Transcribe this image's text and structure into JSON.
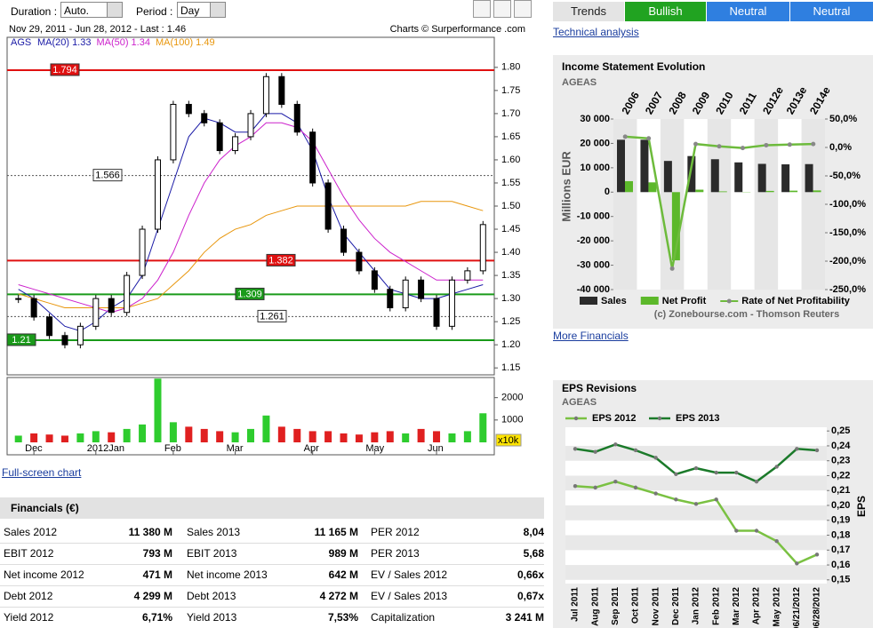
{
  "toolbar": {
    "duration_label": "Duration :",
    "duration_value": "Auto.",
    "period_label": "Period :",
    "period_value": "Day"
  },
  "links": {
    "full_screen": "Full-screen chart",
    "technical_analysis": "Technical analysis",
    "more_financials": "More Financials"
  },
  "trends": {
    "label": "Trends",
    "values": [
      "Bullish",
      "Neutral",
      "Neutral"
    ]
  },
  "chart_data": [
    {
      "type": "candlestick",
      "title": "Nov 29, 2011 - Jun 28, 2012 - Last : 1.46",
      "credit": "Charts © Surperformance .com",
      "symbol": "AGS",
      "categories": [
        null,
        "Dec",
        null,
        null,
        null,
        "2012Jan",
        null,
        null,
        null,
        null,
        "Feb",
        null,
        null,
        null,
        "Mar",
        null,
        null,
        null,
        null,
        "Apr",
        null,
        null,
        null,
        "May",
        null,
        null,
        null,
        "Jun",
        null,
        null,
        null
      ],
      "close": [
        1.3,
        1.26,
        1.22,
        1.2,
        1.24,
        1.3,
        1.27,
        1.35,
        1.45,
        1.6,
        1.72,
        1.7,
        1.68,
        1.62,
        1.65,
        1.7,
        1.78,
        1.72,
        1.66,
        1.55,
        1.45,
        1.4,
        1.36,
        1.32,
        1.28,
        1.34,
        1.3,
        1.24,
        1.34,
        1.36,
        1.46
      ],
      "series": [
        {
          "name": "MA(20)",
          "last": 1.33,
          "color": "#1a1aa6",
          "values": [
            1.32,
            1.3,
            1.27,
            1.24,
            1.23,
            1.25,
            1.28,
            1.3,
            1.35,
            1.45,
            1.55,
            1.65,
            1.69,
            1.68,
            1.66,
            1.66,
            1.7,
            1.7,
            1.68,
            1.62,
            1.52,
            1.44,
            1.4,
            1.36,
            1.32,
            1.31,
            1.3,
            1.3,
            1.31,
            1.32,
            1.33
          ]
        },
        {
          "name": "MA(50)",
          "last": 1.34,
          "color": "#cc22cc",
          "values": [
            1.33,
            1.32,
            1.31,
            1.3,
            1.29,
            1.28,
            1.27,
            1.28,
            1.3,
            1.34,
            1.4,
            1.48,
            1.55,
            1.6,
            1.63,
            1.65,
            1.68,
            1.68,
            1.67,
            1.64,
            1.58,
            1.52,
            1.47,
            1.43,
            1.4,
            1.38,
            1.36,
            1.34,
            1.34,
            1.34,
            1.34
          ]
        },
        {
          "name": "MA(100)",
          "last": 1.49,
          "color": "#e8960c",
          "values": [
            1.31,
            1.3,
            1.29,
            1.28,
            1.28,
            1.28,
            1.28,
            1.28,
            1.29,
            1.3,
            1.33,
            1.36,
            1.4,
            1.43,
            1.45,
            1.46,
            1.48,
            1.49,
            1.5,
            1.5,
            1.5,
            1.5,
            1.5,
            1.5,
            1.5,
            1.5,
            1.51,
            1.51,
            1.51,
            1.5,
            1.49
          ]
        }
      ],
      "levels": [
        {
          "value": 1.794,
          "color": "#e01010"
        },
        {
          "value": 1.566,
          "color": "#ffffff"
        },
        {
          "value": 1.382,
          "color": "#e01010"
        },
        {
          "value": 1.309,
          "color": "#1a9a1a"
        },
        {
          "value": 1.261,
          "color": "#ffffff"
        },
        {
          "value": 1.21,
          "color": "#1a9a1a"
        }
      ],
      "ylim": [
        1.135,
        1.865
      ],
      "yticks": [
        1.15,
        {
          "value": 1.2,
          "label": "1.20"
        },
        1.25,
        {
          "value": 1.3,
          "label": "1.30"
        },
        1.35,
        {
          "value": 1.4,
          "label": "1.40"
        },
        1.45,
        {
          "value": 1.5,
          "label": "1.50"
        },
        1.55,
        {
          "value": 1.6,
          "label": "1.60"
        },
        1.65,
        {
          "value": 1.7,
          "label": "1.70"
        },
        1.75,
        {
          "value": 1.8,
          "label": "1.80"
        }
      ],
      "volume": {
        "unit": "x10k",
        "values": [
          300,
          400,
          350,
          300,
          400,
          500,
          450,
          600,
          800,
          2850,
          900,
          700,
          600,
          500,
          450,
          600,
          1200,
          700,
          600,
          500,
          500,
          400,
          350,
          450,
          500,
          400,
          600,
          500,
          400,
          500,
          1300
        ],
        "ylim": [
          0,
          2900
        ],
        "yticks": [
          1000,
          2000
        ]
      }
    },
    {
      "type": "bar",
      "title": "Income Statement Evolution",
      "subtitle": "AGEAS",
      "ylabel": "Millions EUR",
      "credit": "(c) Zonebourse.com - Thomson Reuters",
      "categories": [
        "2006",
        "2007",
        "2008",
        "2009",
        "2010",
        "2011",
        "2012e",
        "2013e",
        "2014e"
      ],
      "series": [
        {
          "name": "Sales",
          "color": "#2b2b2b",
          "values": [
            21500,
            21500,
            12800,
            14800,
            13500,
            12200,
            11600,
            11400,
            11500
          ]
        },
        {
          "name": "Net Profit",
          "color": "#5cb82a",
          "values": [
            4500,
            4000,
            -28000,
            1000,
            300,
            -100,
            500,
            600,
            700
          ]
        },
        {
          "name": "Rate of Net Profitability",
          "color": "#6dbb3c",
          "axis": "y2",
          "values": [
            19,
            16,
            -213,
            6,
            2,
            -1,
            4,
            5,
            6
          ]
        }
      ],
      "ylim": [
        -40000,
        30000
      ],
      "yticks": [
        {
          "value": -40000,
          "label": "-40 000"
        },
        {
          "value": -30000,
          "label": "-30 000"
        },
        {
          "value": -20000,
          "label": "-20 000"
        },
        {
          "value": -10000,
          "label": "-10 000"
        },
        0,
        {
          "value": 10000,
          "label": "10 000"
        },
        {
          "value": 20000,
          "label": "20 000"
        },
        {
          "value": 30000,
          "label": "30 000"
        }
      ],
      "y2lim": [
        -250,
        50
      ],
      "y2ticks": [
        {
          "value": -250,
          "label": "-250,0%"
        },
        {
          "value": -200,
          "label": "-200,0%"
        },
        {
          "value": -150,
          "label": "-150,0%"
        },
        {
          "value": -100,
          "label": "-100,0%"
        },
        {
          "value": -50,
          "label": "-50,0%"
        },
        {
          "value": 0,
          "label": "0,0%"
        },
        {
          "value": 50,
          "label": "50,0%"
        }
      ]
    },
    {
      "type": "line",
      "title": "EPS Revisions",
      "subtitle": "AGEAS",
      "ylabel": "EPS",
      "categories": [
        "Jul 2011",
        "Aug 2011",
        "Sep 2011",
        "Oct 2011",
        "Nov 2011",
        "Dec 2011",
        "Jan 2012",
        "Feb 2012",
        "Mar 2012",
        "Apr 2012",
        "May 2012",
        "06/21/2012",
        "06/28/2012"
      ],
      "series": [
        {
          "name": "EPS 2012",
          "color": "#7ac142",
          "values": [
            0.213,
            0.212,
            0.216,
            0.212,
            0.208,
            0.204,
            0.201,
            0.204,
            0.183,
            0.183,
            0.176,
            0.161,
            0.167
          ]
        },
        {
          "name": "EPS 2013",
          "color": "#1b7a2a",
          "values": [
            0.238,
            0.236,
            0.241,
            0.237,
            0.232,
            0.221,
            0.225,
            0.222,
            0.222,
            0.216,
            0.226,
            0.238,
            0.237
          ]
        }
      ],
      "ylim": [
        0.1475,
        0.2525
      ],
      "yticks": [
        {
          "value": 0.15,
          "label": "0,15"
        },
        {
          "value": 0.16,
          "label": "0,16"
        },
        {
          "value": 0.17,
          "label": "0,17"
        },
        {
          "value": 0.18,
          "label": "0,18"
        },
        {
          "value": 0.19,
          "label": "0,19"
        },
        {
          "value": 0.2,
          "label": "0,20"
        },
        {
          "value": 0.21,
          "label": "0,21"
        },
        {
          "value": 0.22,
          "label": "0,22"
        },
        {
          "value": 0.23,
          "label": "0,23"
        },
        {
          "value": 0.24,
          "label": "0,24"
        },
        {
          "value": 0.25,
          "label": "0,25"
        }
      ]
    }
  ],
  "financials": {
    "title": "Financials (€)",
    "rows": [
      [
        "Sales 2012",
        "11 380 M",
        "Sales 2013",
        "11 165 M",
        "PER 2012",
        "8,04"
      ],
      [
        "EBIT 2012",
        "793 M",
        "EBIT 2013",
        "989 M",
        "PER 2013",
        "5,68"
      ],
      [
        "Net income 2012",
        "471 M",
        "Net income 2013",
        "642 M",
        "EV / Sales 2012",
        "0,66x"
      ],
      [
        "Debt 2012",
        "4 299 M",
        "Debt 2013",
        "4 272 M",
        "EV / Sales 2013",
        "0,67x"
      ],
      [
        "Yield 2012",
        "6,71%",
        "Yield 2013",
        "7,53%",
        "Capitalization",
        "3 241 M"
      ]
    ]
  }
}
